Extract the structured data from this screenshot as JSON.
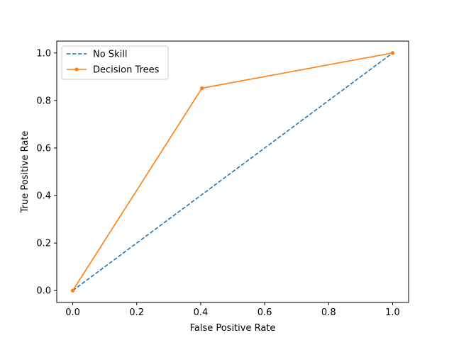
{
  "chart_data": {
    "type": "line",
    "title": "",
    "xlabel": "False Positive Rate",
    "ylabel": "True Positive Rate",
    "xlim": [
      -0.05,
      1.05
    ],
    "ylim": [
      -0.05,
      1.05
    ],
    "xticks": [
      0.0,
      0.2,
      0.4,
      0.6,
      0.8,
      1.0
    ],
    "yticks": [
      0.0,
      0.2,
      0.4,
      0.6,
      0.8,
      1.0
    ],
    "xtick_labels": [
      "0.0",
      "0.2",
      "0.4",
      "0.6",
      "0.8",
      "1.0"
    ],
    "ytick_labels": [
      "0.0",
      "0.2",
      "0.4",
      "0.6",
      "0.8",
      "1.0"
    ],
    "grid": false,
    "legend_position": "top-left",
    "series": [
      {
        "name": "No Skill",
        "x": [
          0,
          1
        ],
        "y": [
          0,
          1
        ],
        "color": "#1f77b4",
        "linestyle": "dashed",
        "marker": "none"
      },
      {
        "name": "Decision Trees",
        "x": [
          0,
          0.404,
          1
        ],
        "y": [
          0,
          0.852,
          1
        ],
        "color": "#ff7f0e",
        "linestyle": "solid",
        "marker": "dot"
      }
    ]
  }
}
